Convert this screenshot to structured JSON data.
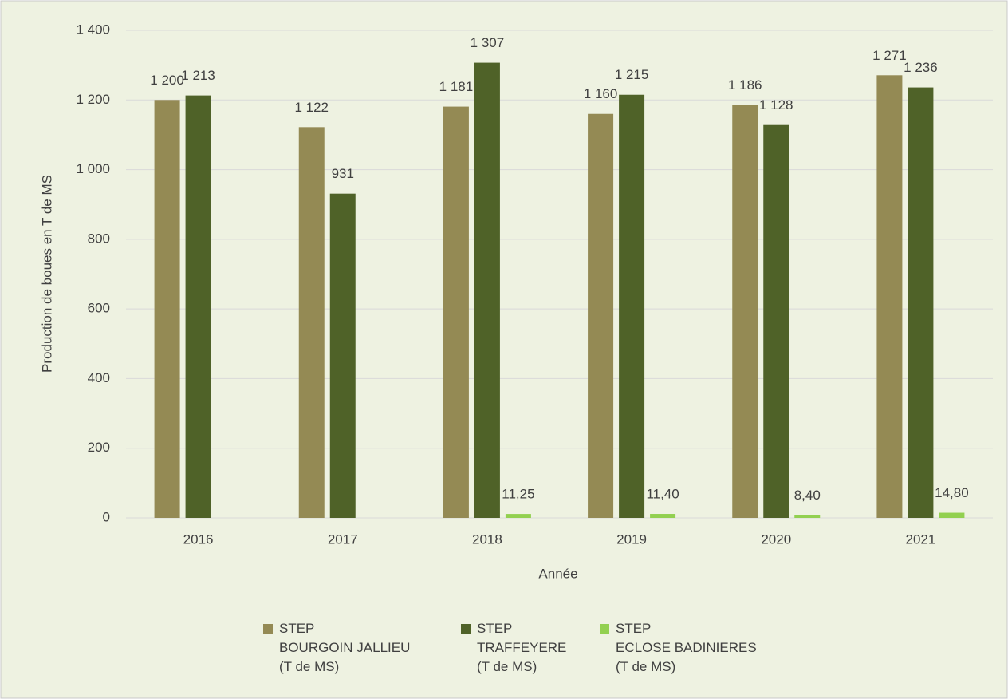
{
  "chart_data": {
    "type": "bar",
    "x_label": "Année",
    "y_label": "Production de boues en T de MS",
    "categories": [
      "2016",
      "2017",
      "2018",
      "2019",
      "2020",
      "2021"
    ],
    "series": [
      {
        "name": "STEP\nBOURGOIN JALLIEU\n(T de MS)",
        "color": "#948a54",
        "values": [
          1200,
          1122,
          1181,
          1160,
          1186,
          1271
        ],
        "value_labels": [
          "1 200",
          "1 122",
          "1 181",
          "1 160",
          "1 186",
          "1 271"
        ]
      },
      {
        "name": "STEP\nTRAFFEYERE\n(T de MS)",
        "color": "#4f6228",
        "values": [
          1213,
          931,
          1307,
          1215,
          1128,
          1236
        ],
        "value_labels": [
          "1 213",
          "931",
          "1 307",
          "1 215",
          "1 128",
          "1 236"
        ]
      },
      {
        "name": "STEP\nECLOSE BADINIERES\n(T de MS)",
        "color": "#92d050",
        "values": [
          null,
          null,
          11.25,
          11.4,
          8.4,
          14.8
        ],
        "value_labels": [
          null,
          null,
          "11,25",
          "11,40",
          "8,40",
          "14,80"
        ]
      }
    ],
    "ylim": [
      0,
      1400
    ],
    "yticks": [
      0,
      200,
      400,
      600,
      800,
      {
        "value": 1000,
        "label": "1 000"
      },
      {
        "value": 1200,
        "label": "1 200"
      },
      {
        "value": 1400,
        "label": "1 400"
      }
    ],
    "grid": true,
    "legend": "bottom"
  }
}
